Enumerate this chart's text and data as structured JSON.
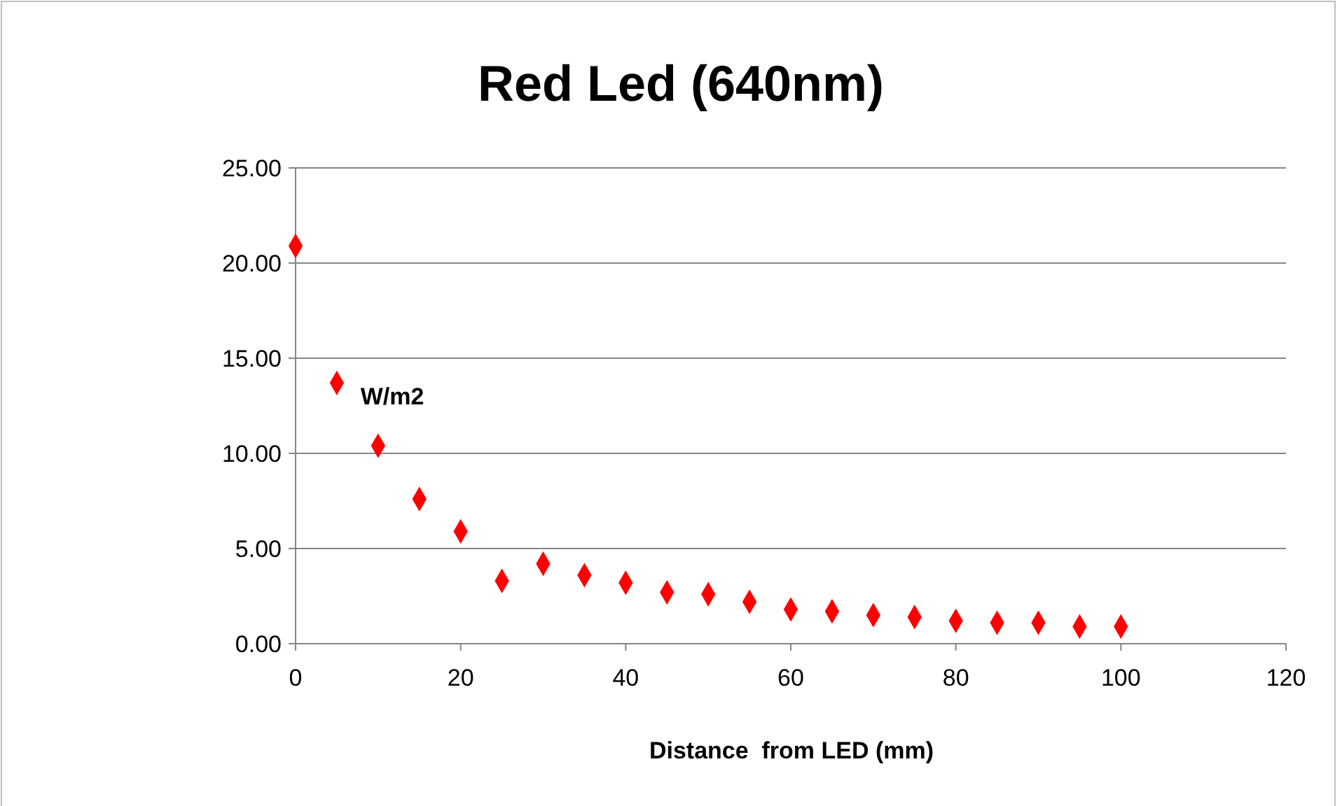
{
  "chart_data": {
    "type": "scatter",
    "title": "Red Led (640nm)",
    "xlabel": "Distance  from LED (mm)",
    "ylabel": "W/m2",
    "x": [
      0,
      5,
      10,
      15,
      20,
      25,
      30,
      35,
      40,
      45,
      50,
      55,
      60,
      65,
      70,
      75,
      80,
      85,
      90,
      95,
      100
    ],
    "series": [
      {
        "color": "#ff0000",
        "values": [
          20.9,
          13.7,
          10.4,
          7.6,
          5.9,
          3.3,
          4.2,
          3.6,
          3.2,
          2.7,
          2.6,
          2.2,
          1.8,
          1.7,
          1.5,
          1.4,
          1.2,
          1.1,
          1.1,
          0.9,
          0.9
        ]
      }
    ],
    "xlim": [
      0,
      120
    ],
    "xticks": [
      0,
      20,
      40,
      60,
      80,
      100,
      120
    ],
    "ylim": [
      0,
      25
    ],
    "yticks": [
      {
        "value": 0,
        "label": "0.00"
      },
      {
        "value": 5,
        "label": "5.00"
      },
      {
        "value": 10,
        "label": "10.00"
      },
      {
        "value": 15,
        "label": "15.00"
      },
      {
        "value": 20,
        "label": "20.00"
      },
      {
        "value": 25,
        "label": "25.00"
      }
    ],
    "grid": "y",
    "marker": "diamond"
  }
}
